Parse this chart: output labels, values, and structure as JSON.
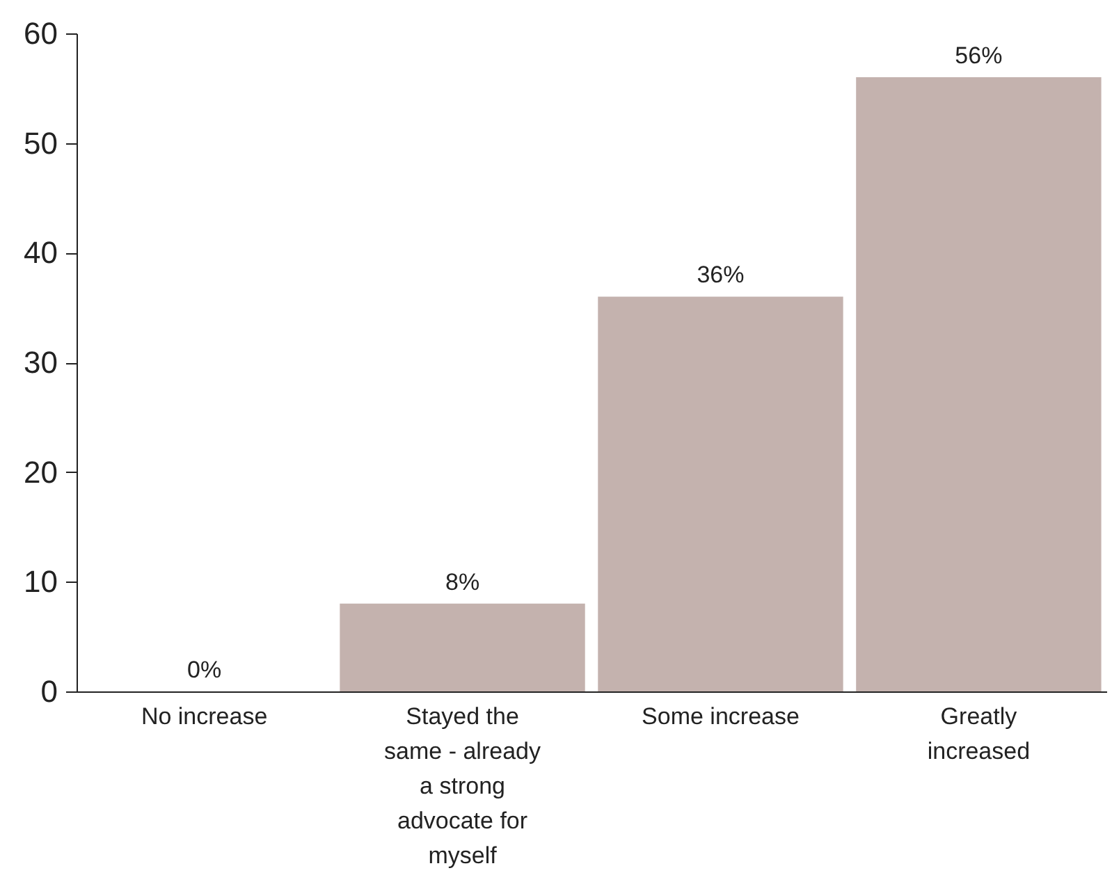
{
  "chart_data": {
    "type": "bar",
    "categories": [
      "No increase",
      "Stayed the same - already a strong advocate for myself",
      "Some increase",
      "Greatly increased"
    ],
    "values": [
      0,
      8,
      36,
      56
    ],
    "value_labels": [
      "0%",
      "8%",
      "36%",
      "56%"
    ],
    "color": "#c4b2ae",
    "ylim": [
      0,
      60
    ],
    "yticks": [
      0,
      10,
      20,
      30,
      40,
      50,
      60
    ]
  }
}
